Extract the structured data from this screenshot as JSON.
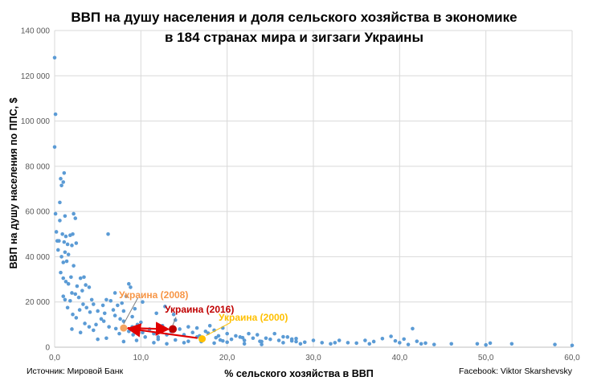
{
  "chart_data": {
    "type": "scatter",
    "title_line1": "ВВП на душу населения и доля сельского хозяйства в экономике",
    "title_line2": "в 184 странах мира и зигзаги Украины",
    "xlabel": "% сельского хозяйства в ВВП",
    "ylabel": "ВВП на душу населения по ППС, $",
    "xlim": [
      0,
      60
    ],
    "ylim": [
      0,
      140000
    ],
    "x_ticks": [
      0,
      10,
      20,
      30,
      40,
      50,
      60
    ],
    "x_tick_labels": [
      "0,0",
      "10,0",
      "20,0",
      "30,0",
      "40,0",
      "50,0",
      "60,0"
    ],
    "y_ticks": [
      0,
      20000,
      40000,
      60000,
      80000,
      100000,
      120000,
      140000
    ],
    "y_tick_labels": [
      "0",
      "20 000",
      "40 000",
      "60 000",
      "80 000",
      "100 000",
      "120 000",
      "140 000"
    ],
    "grid": true,
    "colors": {
      "points": "#5b9bd5",
      "ukraine_2016": "#c00000",
      "ukraine_2008": "#f4a460",
      "ukraine_2000": "#ffc000",
      "arrow": "#e00000",
      "grid": "#d9d9d9",
      "text": "#000000",
      "tick_text": "#595959"
    },
    "series": [
      {
        "points": [
          [
            0.0,
            128000
          ],
          [
            0.1,
            103000
          ],
          [
            0.0,
            88500
          ],
          [
            0.1,
            59000
          ],
          [
            0.2,
            51000
          ],
          [
            0.3,
            47000
          ],
          [
            0.5,
            47000
          ],
          [
            0.6,
            64000
          ],
          [
            0.7,
            74500
          ],
          [
            0.8,
            71500
          ],
          [
            1.0,
            73000
          ],
          [
            1.1,
            77000
          ],
          [
            1.2,
            58000
          ],
          [
            0.6,
            56000
          ],
          [
            0.9,
            50000
          ],
          [
            1.1,
            46500
          ],
          [
            1.3,
            49000
          ],
          [
            1.5,
            45500
          ],
          [
            0.4,
            43000
          ],
          [
            0.8,
            40000
          ],
          [
            1.0,
            37500
          ],
          [
            1.2,
            42000
          ],
          [
            1.4,
            38000
          ],
          [
            1.6,
            41000
          ],
          [
            1.8,
            49500
          ],
          [
            2.0,
            45000
          ],
          [
            2.2,
            59000
          ],
          [
            2.4,
            57000
          ],
          [
            2.1,
            50000
          ],
          [
            2.5,
            46000
          ],
          [
            0.7,
            33000
          ],
          [
            1.0,
            30500
          ],
          [
            1.3,
            29000
          ],
          [
            1.6,
            28000
          ],
          [
            1.9,
            31000
          ],
          [
            2.2,
            36000
          ],
          [
            2.6,
            27000
          ],
          [
            3.0,
            30500
          ],
          [
            3.4,
            31000
          ],
          [
            1.0,
            22500
          ],
          [
            1.2,
            21000
          ],
          [
            1.5,
            17500
          ],
          [
            1.8,
            20500
          ],
          [
            2.0,
            24000
          ],
          [
            2.4,
            23500
          ],
          [
            2.8,
            22000
          ],
          [
            3.2,
            25000
          ],
          [
            3.6,
            27500
          ],
          [
            4.0,
            26500
          ],
          [
            4.3,
            21000
          ],
          [
            2.1,
            14500
          ],
          [
            2.5,
            13000
          ],
          [
            2.9,
            16500
          ],
          [
            3.3,
            19000
          ],
          [
            3.7,
            17500
          ],
          [
            4.1,
            15500
          ],
          [
            4.5,
            19000
          ],
          [
            5.0,
            16000
          ],
          [
            5.4,
            12500
          ],
          [
            5.6,
            18500
          ],
          [
            5.8,
            15000
          ],
          [
            6.2,
            50000
          ],
          [
            6.5,
            20500
          ],
          [
            6.8,
            16500
          ],
          [
            7.0,
            14000
          ],
          [
            7.3,
            18500
          ],
          [
            7.6,
            12500
          ],
          [
            8.0,
            16000
          ],
          [
            8.3,
            22500
          ],
          [
            8.6,
            28000
          ],
          [
            9.0,
            13500
          ],
          [
            9.3,
            17000
          ],
          [
            9.6,
            10000
          ],
          [
            10.0,
            11000
          ],
          [
            3.5,
            10500
          ],
          [
            4.8,
            10000
          ],
          [
            5.7,
            11500
          ],
          [
            6.3,
            9000
          ],
          [
            7.1,
            8200
          ],
          [
            7.5,
            6000
          ],
          [
            8.6,
            7000
          ],
          [
            9.1,
            5500
          ],
          [
            10.2,
            6500
          ],
          [
            11.0,
            8000
          ],
          [
            11.5,
            6000
          ],
          [
            12.0,
            4500
          ],
          [
            12.5,
            9500
          ],
          [
            13.0,
            5500
          ],
          [
            13.5,
            7000
          ],
          [
            14.0,
            12000
          ],
          [
            14.5,
            8000
          ],
          [
            15.0,
            5500
          ],
          [
            15.5,
            9000
          ],
          [
            16.0,
            6500
          ],
          [
            16.5,
            4500
          ],
          [
            17.5,
            7000
          ],
          [
            18.0,
            9500
          ],
          [
            18.5,
            7500
          ],
          [
            19.0,
            5000
          ],
          [
            19.5,
            8500
          ],
          [
            20.0,
            6000
          ],
          [
            20.5,
            3500
          ],
          [
            21.0,
            5000
          ],
          [
            21.5,
            4500
          ],
          [
            22.0,
            3000
          ],
          [
            22.5,
            6000
          ],
          [
            23.0,
            4000
          ],
          [
            23.5,
            5500
          ],
          [
            24.0,
            2500
          ],
          [
            24.5,
            4000
          ],
          [
            25.0,
            3500
          ],
          [
            25.5,
            6000
          ],
          [
            26.0,
            3000
          ],
          [
            26.5,
            2000
          ],
          [
            27.0,
            4500
          ],
          [
            27.5,
            2800
          ],
          [
            28.0,
            3800
          ],
          [
            28.5,
            1500
          ],
          [
            29.0,
            2200
          ],
          [
            30.0,
            3000
          ],
          [
            31.0,
            2000
          ],
          [
            32.0,
            1500
          ],
          [
            33.0,
            3000
          ],
          [
            34.0,
            2000
          ],
          [
            35.0,
            1800
          ],
          [
            36.0,
            3000
          ],
          [
            37.0,
            2500
          ],
          [
            38.0,
            3800
          ],
          [
            39.0,
            4800
          ],
          [
            40.0,
            2000
          ],
          [
            41.0,
            1200
          ],
          [
            41.5,
            8200
          ],
          [
            42.0,
            2600
          ],
          [
            42.5,
            1500
          ],
          [
            43.0,
            1800
          ],
          [
            49.0,
            1500
          ],
          [
            50.0,
            1000
          ],
          [
            60.0,
            800
          ],
          [
            5.0,
            3500
          ],
          [
            6.0,
            4000
          ],
          [
            8.0,
            2500
          ],
          [
            9.5,
            3000
          ],
          [
            11.5,
            2000
          ],
          [
            13.0,
            1500
          ],
          [
            15.0,
            2000
          ],
          [
            17.0,
            2500
          ],
          [
            18.5,
            1800
          ],
          [
            20.0,
            2200
          ],
          [
            22.0,
            1500
          ],
          [
            24.0,
            1200
          ],
          [
            16.5,
            8500
          ],
          [
            17.8,
            6200
          ],
          [
            18.7,
            4200
          ],
          [
            19.2,
            3200
          ],
          [
            16.8,
            5000
          ],
          [
            21.8,
            4200
          ],
          [
            23.8,
            2600
          ],
          [
            26.5,
            4600
          ],
          [
            27.5,
            3600
          ],
          [
            2.0,
            8000
          ],
          [
            3.0,
            6500
          ],
          [
            4.0,
            9000
          ],
          [
            4.5,
            7500
          ],
          [
            8.0,
            11500
          ],
          [
            9.0,
            9000
          ],
          [
            10.5,
            4500
          ],
          [
            12.0,
            3500
          ],
          [
            14.0,
            3200
          ],
          [
            15.5,
            2600
          ],
          [
            19.5,
            2800
          ],
          [
            28.0,
            2500
          ],
          [
            32.5,
            2000
          ],
          [
            36.5,
            1500
          ],
          [
            39.5,
            2800
          ],
          [
            40.5,
            3600
          ],
          [
            44.0,
            1200
          ],
          [
            46.0,
            1500
          ],
          [
            50.5,
            1800
          ],
          [
            53.0,
            1500
          ],
          [
            58.0,
            1200
          ],
          [
            6.0,
            21000
          ],
          [
            7.0,
            24000
          ],
          [
            7.8,
            19500
          ],
          [
            8.8,
            26500
          ],
          [
            10.2,
            20000
          ],
          [
            11.8,
            15000
          ],
          [
            12.8,
            18000
          ],
          [
            13.8,
            14500
          ]
        ]
      }
    ],
    "highlights": [
      {
        "label": "Украина (2016)",
        "x": 13.7,
        "y": 8000
      },
      {
        "label": "Украина (2008)",
        "x": 8.0,
        "y": 8500
      },
      {
        "label": "Украина (2000)",
        "x": 17.1,
        "y": 3700
      }
    ]
  },
  "footer": {
    "source": "Источник: Мировой Банк",
    "credit": "Facebook: Viktor Skarshevsky"
  }
}
